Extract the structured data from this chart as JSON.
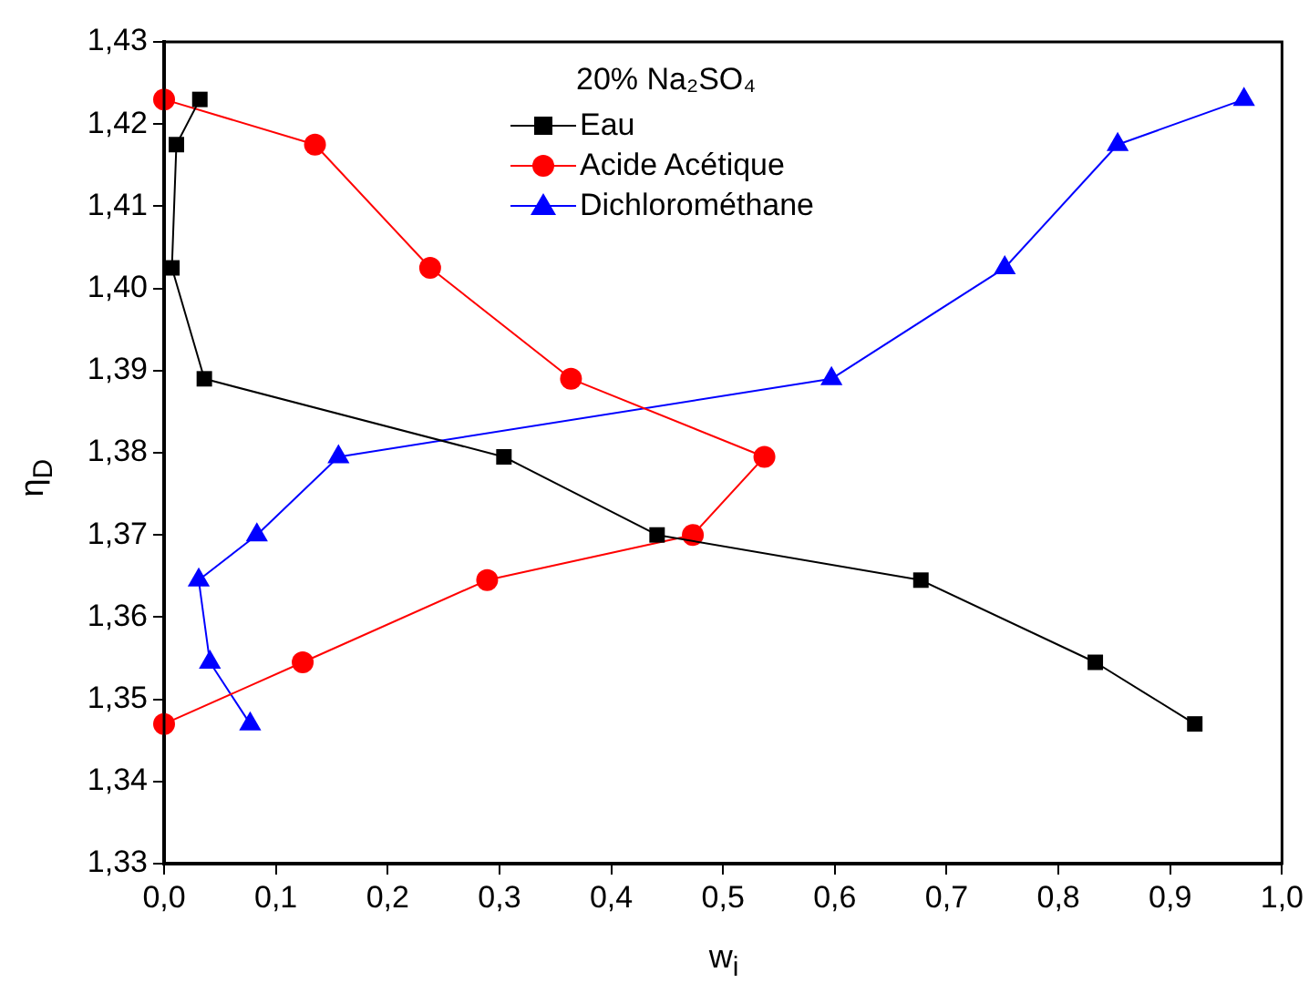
{
  "chart_data": {
    "type": "line",
    "xlabel": "w$_{i}$",
    "ylabel": "η$_{D}$",
    "legend_title": "20% Na₂SO₄",
    "legend": "top",
    "grid": false,
    "line_style": "solid",
    "xlim": [
      0,
      1
    ],
    "ylim": [
      1.33,
      1.43
    ],
    "xticks": [
      {
        "value": 0,
        "label": "0,0"
      },
      {
        "value": 0.1,
        "label": "0,1"
      },
      {
        "value": 0.2,
        "label": "0,2"
      },
      {
        "value": 0.3,
        "label": "0,3"
      },
      {
        "value": 0.4,
        "label": "0,4"
      },
      {
        "value": 0.5,
        "label": "0,5"
      },
      {
        "value": 0.6,
        "label": "0,6"
      },
      {
        "value": 0.7,
        "label": "0,7"
      },
      {
        "value": 0.8,
        "label": "0,8"
      },
      {
        "value": 0.9,
        "label": "0,9"
      },
      {
        "value": 1,
        "label": "1,0"
      }
    ],
    "yticks": [
      {
        "value": 1.33,
        "label": "1,33"
      },
      {
        "value": 1.34,
        "label": "1,34"
      },
      {
        "value": 1.35,
        "label": "1,35"
      },
      {
        "value": 1.36,
        "label": "1,36"
      },
      {
        "value": 1.37,
        "label": "1,37"
      },
      {
        "value": 1.38,
        "label": "1,38"
      },
      {
        "value": 1.39,
        "label": "1,39"
      },
      {
        "value": 1.4,
        "label": "1,40"
      },
      {
        "value": 1.41,
        "label": "1,41"
      },
      {
        "value": 1.42,
        "label": "1,42"
      },
      {
        "value": 1.43,
        "label": "1,43"
      }
    ],
    "series": [
      {
        "name": "Eau",
        "color": "#000000",
        "marker": "square",
        "x": [
          0.032,
          0.011,
          0.007,
          0.036,
          0.304,
          0.441,
          0.677,
          0.833,
          0.922
        ],
        "values": [
          1.423,
          1.4175,
          1.4025,
          1.389,
          1.3795,
          1.37,
          1.3645,
          1.3545,
          1.347
        ]
      },
      {
        "name": "Acide Acétique",
        "color": "#ff0000",
        "marker": "circle",
        "x": [
          0,
          0.135,
          0.238,
          0.364,
          0.537,
          0.473,
          0.289,
          0.124,
          0
        ],
        "values": [
          1.423,
          1.4175,
          1.4025,
          1.389,
          1.3795,
          1.37,
          1.3645,
          1.3545,
          1.347
        ]
      },
      {
        "name": "Dichlorométhane",
        "color": "#0000ff",
        "marker": "triangle",
        "x": [
          0.966,
          0.853,
          0.752,
          0.597,
          0.156,
          0.083,
          0.031,
          0.041,
          0.077
        ],
        "values": [
          1.423,
          1.4175,
          1.4025,
          1.389,
          1.3795,
          1.37,
          1.3645,
          1.3545,
          1.347
        ]
      }
    ]
  }
}
